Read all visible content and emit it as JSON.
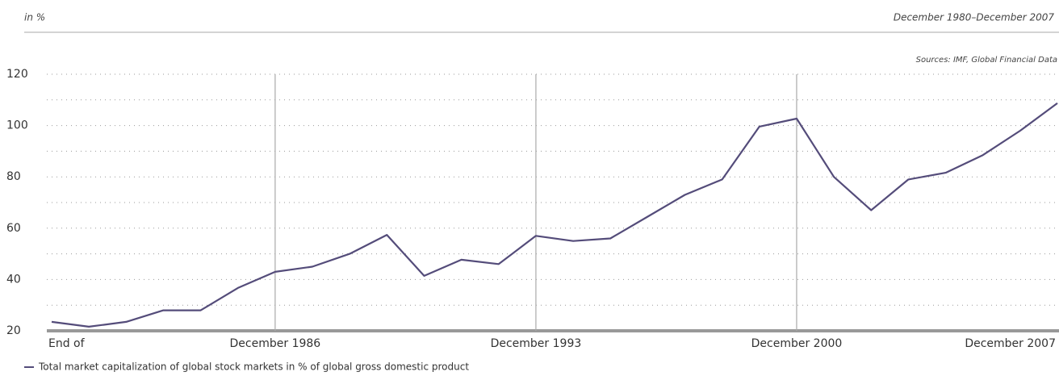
{
  "chart_data": {
    "type": "line",
    "unit_label": "in %",
    "period": "December 1980–December 2007",
    "source": "Sources:  IMF, Global Financial Data",
    "categories": [
      "End of",
      null,
      null,
      null,
      null,
      null,
      "December 1986",
      null,
      null,
      null,
      null,
      null,
      null,
      "December 1993",
      null,
      null,
      null,
      null,
      null,
      null,
      "December 2000",
      null,
      null,
      null,
      null,
      null,
      null,
      "December 2007"
    ],
    "series": [
      {
        "name": "Total market capitalization of global stock markets in % of global gross domestic product",
        "color": "#544c7a",
        "values": [
          23.5,
          21.6,
          23.5,
          28,
          28,
          36.7,
          43,
          45,
          50,
          57.4,
          41.4,
          47.7,
          46,
          57,
          55,
          56,
          64.5,
          73,
          79,
          99.6,
          102.7,
          80,
          67,
          79,
          81.6,
          88.5,
          98,
          108.7
        ]
      }
    ],
    "ylim": [
      20,
      120
    ],
    "yticks": [
      20,
      40,
      60,
      80,
      100,
      120
    ],
    "minor_gridlines": [
      30,
      50,
      70,
      90,
      110
    ],
    "grid": true
  }
}
